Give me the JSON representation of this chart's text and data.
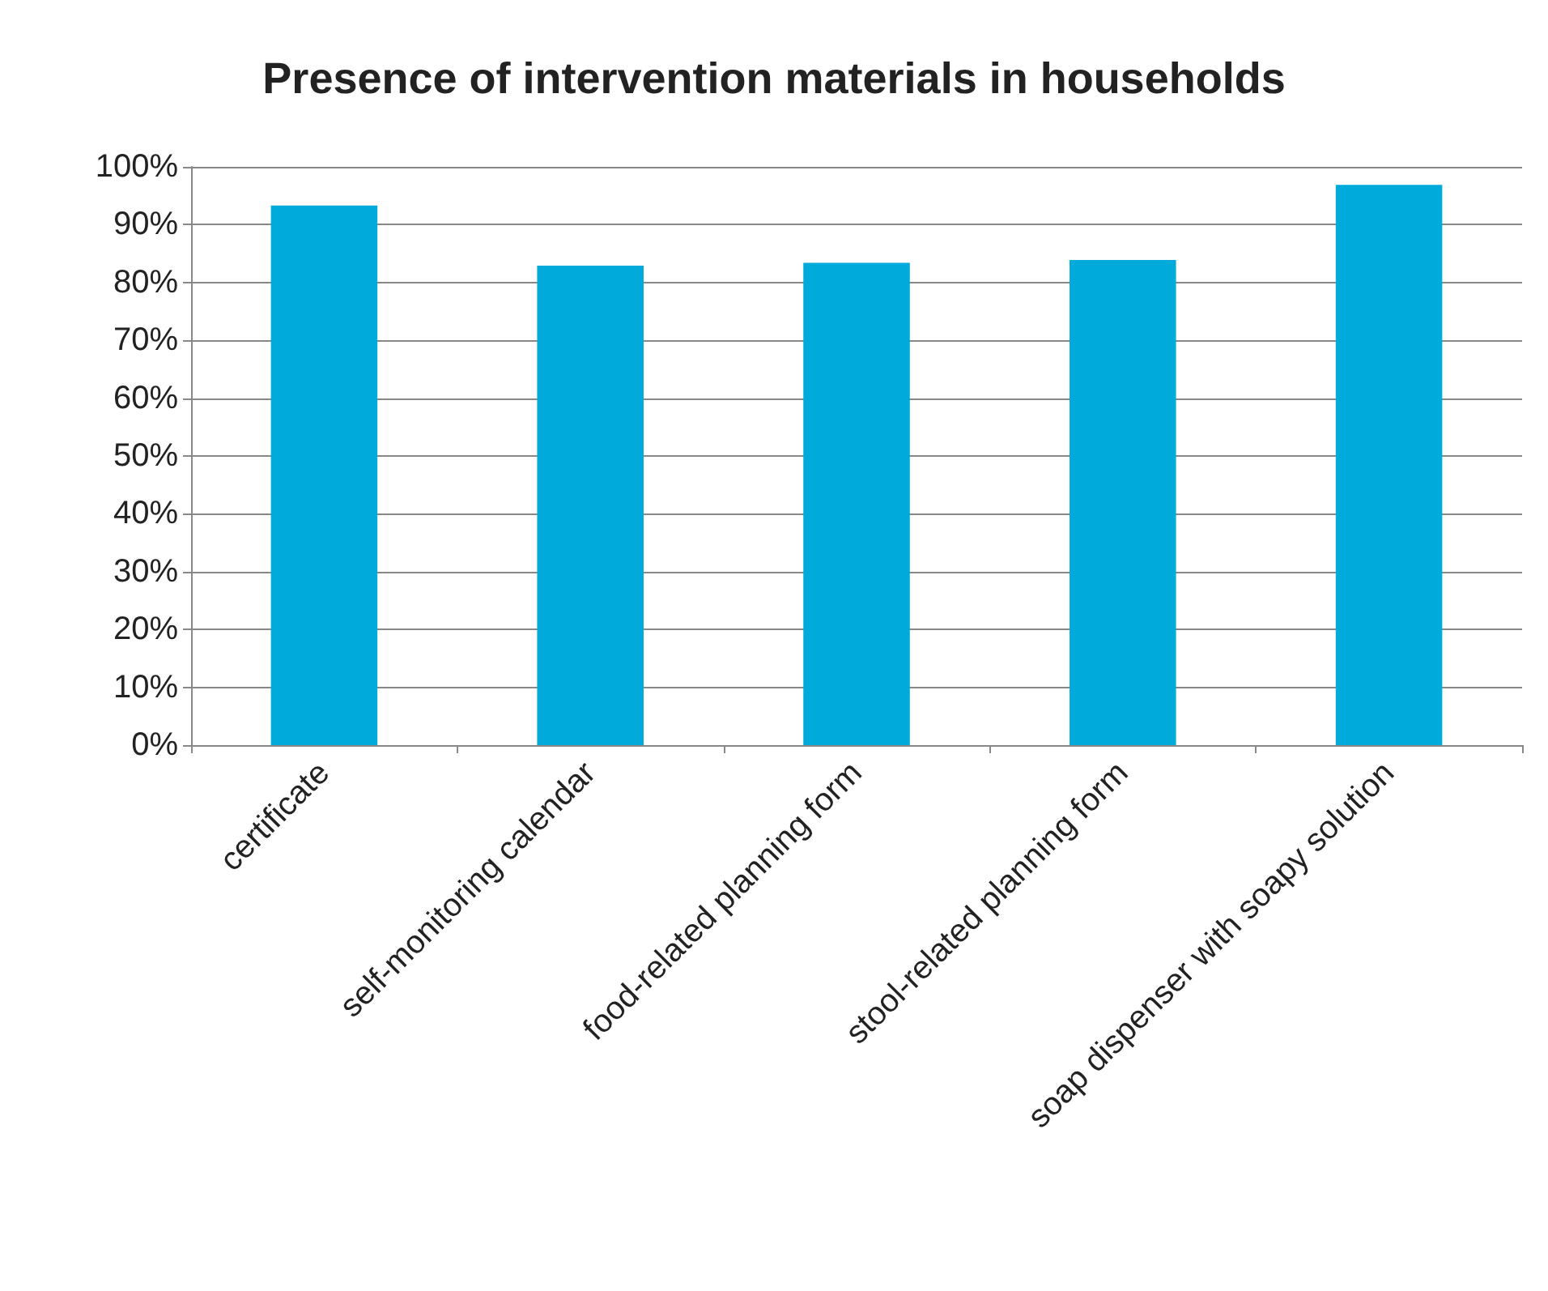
{
  "chart_data": {
    "type": "bar",
    "title": "Presence of intervention materials in households",
    "categories": [
      "certificate",
      "self-monitoring calendar",
      "food-related planning form",
      "stool-related planning form",
      "soap dispenser with soapy solution"
    ],
    "values": [
      93.3,
      82.9,
      83.4,
      83.9,
      96.9
    ],
    "color": "#00aadb",
    "ylim": [
      0,
      100
    ],
    "yticks": [
      {
        "value": 0,
        "label": "0%"
      },
      {
        "value": 10,
        "label": "10%"
      },
      {
        "value": 20,
        "label": "20%"
      },
      {
        "value": 30,
        "label": "30%"
      },
      {
        "value": 40,
        "label": "40%"
      },
      {
        "value": 50,
        "label": "50%"
      },
      {
        "value": 60,
        "label": "60%"
      },
      {
        "value": 70,
        "label": "70%"
      },
      {
        "value": 80,
        "label": "80%"
      },
      {
        "value": 90,
        "label": "90%"
      },
      {
        "value": 100,
        "label": "100%"
      }
    ],
    "grid": "y"
  }
}
